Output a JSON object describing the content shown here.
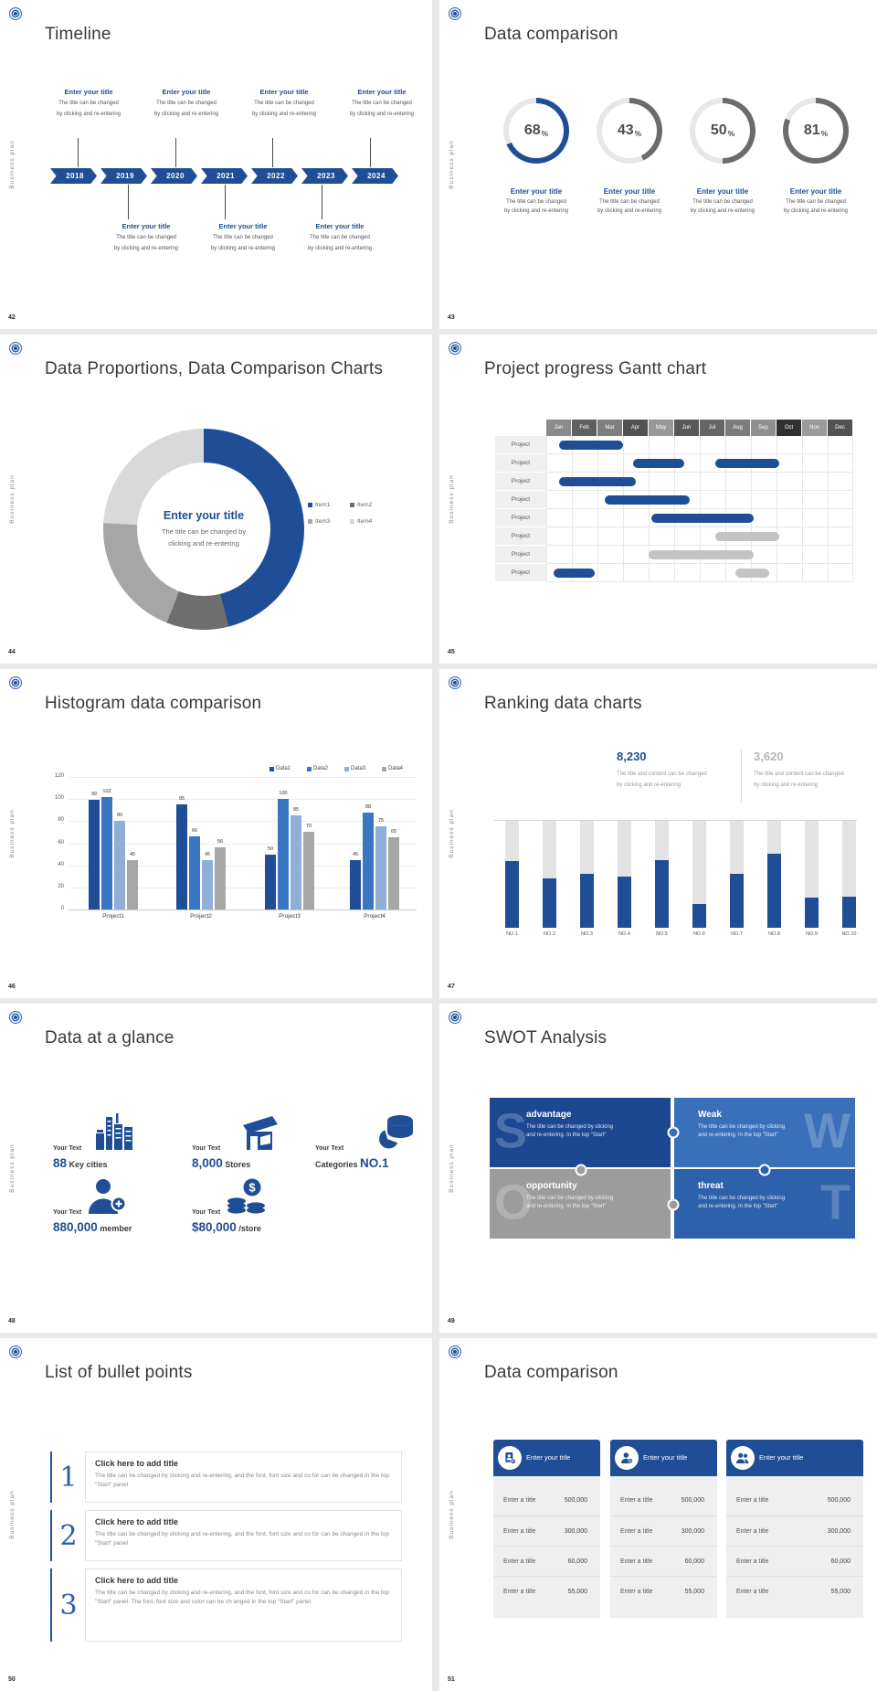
{
  "branding": {
    "vertical_label": "Business plan",
    "accent_blue": "#1F4E96",
    "gray_bar": "#C3C3C3",
    "logo_icon": "ring-logo-icon"
  },
  "slides": [
    {
      "number": "42",
      "title": "Timeline",
      "timeline": {
        "years": [
          "2018",
          "2019",
          "2020",
          "2021",
          "2022",
          "2023",
          "2024"
        ],
        "top_items": [
          {
            "title": "Enter your title",
            "desc1": "The title can be changed",
            "desc2": "by clicking and re-entering"
          },
          {
            "title": "Enter your title",
            "desc1": "The title can be changed",
            "desc2": "by clicking and re-entering"
          },
          {
            "title": "Enter your title",
            "desc1": "The title can be changed",
            "desc2": "by clicking and re-entering"
          },
          {
            "title": "Enter your title",
            "desc1": "The title can be changed",
            "desc2": "by clicking and re-entering"
          }
        ],
        "bottom_items": [
          {
            "title": "Enter your title",
            "desc1": "The title can be changed",
            "desc2": "by clicking and re-entering"
          },
          {
            "title": "Enter your title",
            "desc1": "The title can be changed",
            "desc2": "by clicking and re-entering"
          },
          {
            "title": "Enter your title",
            "desc1": "The title can be changed",
            "desc2": "by clicking and re-entering"
          }
        ]
      }
    },
    {
      "number": "43",
      "title": "Data comparison",
      "rings": [
        {
          "percent": 68,
          "label": "68",
          "suffix": "%",
          "color": "#1F4E96",
          "title": "Enter your title",
          "desc1": "The title can be changed",
          "desc2": "by clicking and re-entering"
        },
        {
          "percent": 43,
          "label": "43",
          "suffix": "%",
          "color": "#6B6B6B",
          "title": "Enter your title",
          "desc1": "The title can be changed",
          "desc2": "by clicking and re-entering"
        },
        {
          "percent": 50,
          "label": "50",
          "suffix": "%",
          "color": "#6B6B6B",
          "title": "Enter your title",
          "desc1": "The title can be changed",
          "desc2": "by clicking and re-entering"
        },
        {
          "percent": 81,
          "label": "81",
          "suffix": "%",
          "color": "#6B6B6B",
          "title": "Enter your title",
          "desc1": "The title can be changed",
          "desc2": "by clicking and re-entering"
        }
      ]
    },
    {
      "number": "44",
      "title": "Data Proportions, Data Comparison Charts",
      "donut": {
        "center_title": "Enter your title",
        "center_desc1": "The title can be changed by",
        "center_desc2": "clicking and re-entering",
        "segments": [
          {
            "name": "Item1",
            "value": 46,
            "color": "#1F4E96"
          },
          {
            "name": "Item2",
            "value": 10,
            "color": "#6E6E6E"
          },
          {
            "name": "Item3",
            "value": 20,
            "color": "#A6A6A6"
          },
          {
            "name": "Item4",
            "value": 24,
            "color": "#D9D9D9"
          }
        ]
      }
    },
    {
      "number": "45",
      "title": "Project progress Gantt chart",
      "gantt": {
        "row_label": "Project",
        "months": [
          {
            "label": "Jan",
            "shade": "#8B8B8B"
          },
          {
            "label": "Feb",
            "shade": "#606060"
          },
          {
            "label": "Mar",
            "shade": "#7E7E7E"
          },
          {
            "label": "Apr",
            "shade": "#525252"
          },
          {
            "label": "May",
            "shade": "#989898"
          },
          {
            "label": "Jun",
            "shade": "#585858"
          },
          {
            "label": "Jul",
            "shade": "#656565"
          },
          {
            "label": "Aug",
            "shade": "#7B7B7B"
          },
          {
            "label": "Sep",
            "shade": "#8F8F8F"
          },
          {
            "label": "Oct",
            "shade": "#303030"
          },
          {
            "label": "Nov",
            "shade": "#9B9B9B"
          },
          {
            "label": "Dec",
            "shade": "#525252"
          }
        ],
        "rows": [
          [
            [
              0.5,
              3.0,
              "blue"
            ]
          ],
          [
            [
              3.4,
              5.4,
              "blue"
            ],
            [
              6.6,
              9.1,
              "blue"
            ]
          ],
          [
            [
              0.5,
              3.5,
              "blue"
            ]
          ],
          [
            [
              2.3,
              5.6,
              "blue"
            ]
          ],
          [
            [
              4.1,
              8.1,
              "blue"
            ]
          ],
          [
            [
              6.6,
              9.1,
              "gray"
            ]
          ],
          [
            [
              4.0,
              8.1,
              "gray"
            ]
          ],
          [
            [
              0.3,
              1.9,
              "blue"
            ],
            [
              7.4,
              8.7,
              "gray"
            ]
          ]
        ]
      }
    },
    {
      "number": "46",
      "title": "Histogram data comparison",
      "histogram": {
        "legend": [
          {
            "name": "Data1",
            "color": "#1F4E96"
          },
          {
            "name": "Data2",
            "color": "#3A76C2"
          },
          {
            "name": "Data3",
            "color": "#8FAFD9"
          },
          {
            "name": "Data4",
            "color": "#A6A6A6"
          }
        ],
        "categories": [
          "Project1",
          "Project2",
          "Project3",
          "Project4"
        ],
        "values": [
          [
            99,
            102,
            80,
            45
          ],
          [
            95,
            66,
            45,
            56
          ],
          [
            50,
            100,
            85,
            70
          ],
          [
            45,
            88,
            75,
            65
          ]
        ],
        "yticks": [
          0,
          20,
          40,
          60,
          80,
          100,
          120
        ],
        "ymax": 120
      }
    },
    {
      "number": "47",
      "title": "Ranking data charts",
      "ranking": {
        "stat1": {
          "value": "8,230",
          "desc1": "The title and content can be changed",
          "desc2": "by clicking and re-entering",
          "color": "#1F4E96"
        },
        "stat2": {
          "value": "3,620",
          "desc1": "The title and content can be changed",
          "desc2": "by clicking and re-entering",
          "color": "#B5B5B5"
        },
        "bars_pct": [
          62,
          46,
          50,
          48,
          63,
          22,
          50,
          69,
          28,
          29
        ],
        "labels": [
          "NO.1",
          "NO.2",
          "NO.3",
          "NO.4",
          "NO.5",
          "NO.6",
          "NO.7",
          "NO.8",
          "NO.9",
          "NO.10"
        ]
      }
    },
    {
      "number": "48",
      "title": "Data at a glance",
      "stats": [
        {
          "prefix": "Your Text",
          "value": "88",
          "unit": "Key cities",
          "icon": "city-buildings-icon"
        },
        {
          "prefix": "Your Text",
          "value": "8,000",
          "unit": "Stores",
          "icon": "store-icon"
        },
        {
          "prefix": "Your Text",
          "lead": "Categories",
          "value": "NO.1",
          "small_first": true,
          "icon": "pie-cylinder-icon"
        },
        {
          "prefix": "Your Text",
          "value": "880,000",
          "unit": "member",
          "icon": "member-add-icon"
        },
        {
          "prefix": "Your Text",
          "value": "$80,000",
          "unit": "/store",
          "icon": "coins-icon"
        }
      ]
    },
    {
      "number": "49",
      "title": "SWOT Analysis",
      "swot": [
        {
          "letter": "S",
          "letter_side": "left",
          "name": "advantage",
          "desc1": "The title can be changed by clicking",
          "desc2": "and re-entering. In the top \"Start\"",
          "color": "#1C4892"
        },
        {
          "letter": "W",
          "letter_side": "right",
          "name": "Weak",
          "desc1": "The title can be changed by clicking",
          "desc2": "and re-entering. In the top \"Start\"",
          "color": "#3A70B9"
        },
        {
          "letter": "O",
          "letter_side": "left",
          "name": "opportunity",
          "desc1": "The title can be changed by clicking",
          "desc2": "and re-entering. In the top \"Start\"",
          "color": "#9C9C9C"
        },
        {
          "letter": "T",
          "letter_side": "right",
          "name": "threat",
          "desc1": "The title can be changed by clicking",
          "desc2": "and re-entering. In the top \"Start\"",
          "color": "#2E61AC"
        }
      ]
    },
    {
      "number": "50",
      "title": "List of bullet points",
      "bullets": [
        {
          "num": "1",
          "title": "Click here to add title",
          "desc": "The title can be changed by clicking and re-entering, and the font, font size and co for can be changed in the top \"Start\" panel"
        },
        {
          "num": "2",
          "title": "Click here to add title",
          "desc": "The title can be changed by clicking and re-entering, and the font, font size and co for can be changed in the top \"Start\" panel"
        },
        {
          "num": "3",
          "title": "Click here to add title",
          "desc": "The title can be changed by clicking and re-entering, and the font, font size and co for can be changed in the top \"Start\" panel. The font, font size and color can be ch anged in the top \"Start\" panel."
        }
      ]
    },
    {
      "number": "51",
      "title": "Data comparison",
      "cards": [
        {
          "header": "Enter your title",
          "icon": "id-card-icon",
          "rows": [
            {
              "label": "Enter a title",
              "value": "500,000"
            },
            {
              "label": "Enter a title",
              "value": "300,000"
            },
            {
              "label": "Enter a title",
              "value": "60,000"
            },
            {
              "label": "Enter a title",
              "value": "55,000"
            }
          ]
        },
        {
          "header": "Enter your title",
          "icon": "person-add-icon",
          "rows": [
            {
              "label": "Enter a title",
              "value": "500,000"
            },
            {
              "label": "Enter a title",
              "value": "300,000"
            },
            {
              "label": "Enter a title",
              "value": "60,000"
            },
            {
              "label": "Enter a title",
              "value": "55,000"
            }
          ]
        },
        {
          "header": "Enter your title",
          "icon": "people-icon",
          "rows": [
            {
              "label": "Enter a title",
              "value": "500,000"
            },
            {
              "label": "Enter a title",
              "value": "300,000"
            },
            {
              "label": "Enter a title",
              "value": "60,000"
            },
            {
              "label": "Enter a title",
              "value": "55,000"
            }
          ]
        }
      ]
    }
  ],
  "chart_data": [
    {
      "slide": "43",
      "type": "pie",
      "title": "Data comparison",
      "values": [
        68,
        43,
        50,
        81
      ],
      "labels": [
        "Enter your title",
        "Enter your title",
        "Enter your title",
        "Enter your title"
      ],
      "note": "four percentage donut rings"
    },
    {
      "slide": "44",
      "type": "pie",
      "title": "Data Proportions, Data Comparison Charts",
      "categories": [
        "Item1",
        "Item2",
        "Item3",
        "Item4"
      ],
      "values": [
        46,
        10,
        20,
        24
      ],
      "legend_position": "right"
    },
    {
      "slide": "45",
      "type": "table",
      "title": "Project progress Gantt chart",
      "x": [
        "Jan",
        "Feb",
        "Mar",
        "Apr",
        "May",
        "Jun",
        "Jul",
        "Aug",
        "Sep",
        "Oct",
        "Nov",
        "Dec"
      ],
      "rows": [
        {
          "label": "Project",
          "bars": [
            [
              0.5,
              3.0,
              "blue"
            ]
          ]
        },
        {
          "label": "Project",
          "bars": [
            [
              3.4,
              5.4,
              "blue"
            ],
            [
              6.6,
              9.1,
              "blue"
            ]
          ]
        },
        {
          "label": "Project",
          "bars": [
            [
              0.5,
              3.5,
              "blue"
            ]
          ]
        },
        {
          "label": "Project",
          "bars": [
            [
              2.3,
              5.6,
              "blue"
            ]
          ]
        },
        {
          "label": "Project",
          "bars": [
            [
              4.1,
              8.1,
              "blue"
            ]
          ]
        },
        {
          "label": "Project",
          "bars": [
            [
              6.6,
              9.1,
              "gray"
            ]
          ]
        },
        {
          "label": "Project",
          "bars": [
            [
              4.0,
              8.1,
              "gray"
            ]
          ]
        },
        {
          "label": "Project",
          "bars": [
            [
              0.3,
              1.9,
              "blue"
            ],
            [
              7.4,
              8.7,
              "gray"
            ]
          ]
        }
      ]
    },
    {
      "slide": "46",
      "type": "bar",
      "title": "Histogram data comparison",
      "categories": [
        "Project1",
        "Project2",
        "Project3",
        "Project4"
      ],
      "series": [
        {
          "name": "Data1",
          "values": [
            99,
            95,
            50,
            45
          ]
        },
        {
          "name": "Data2",
          "values": [
            102,
            66,
            100,
            88
          ]
        },
        {
          "name": "Data3",
          "values": [
            80,
            45,
            85,
            75
          ]
        },
        {
          "name": "Data4",
          "values": [
            45,
            56,
            70,
            65
          ]
        }
      ],
      "ylim": [
        0,
        120
      ],
      "yticks": [
        0,
        20,
        40,
        60,
        80,
        100,
        120
      ],
      "legend_position": "top-right",
      "grid": true
    },
    {
      "slide": "47",
      "type": "bar",
      "title": "Ranking data charts",
      "categories": [
        "NO.1",
        "NO.2",
        "NO.3",
        "NO.4",
        "NO.5",
        "NO.6",
        "NO.7",
        "NO.8",
        "NO.9",
        "NO.10"
      ],
      "values_pct_of_max": [
        62,
        46,
        50,
        48,
        63,
        22,
        50,
        69,
        28,
        29
      ],
      "callouts": [
        "8,230",
        "3,620"
      ]
    }
  ]
}
